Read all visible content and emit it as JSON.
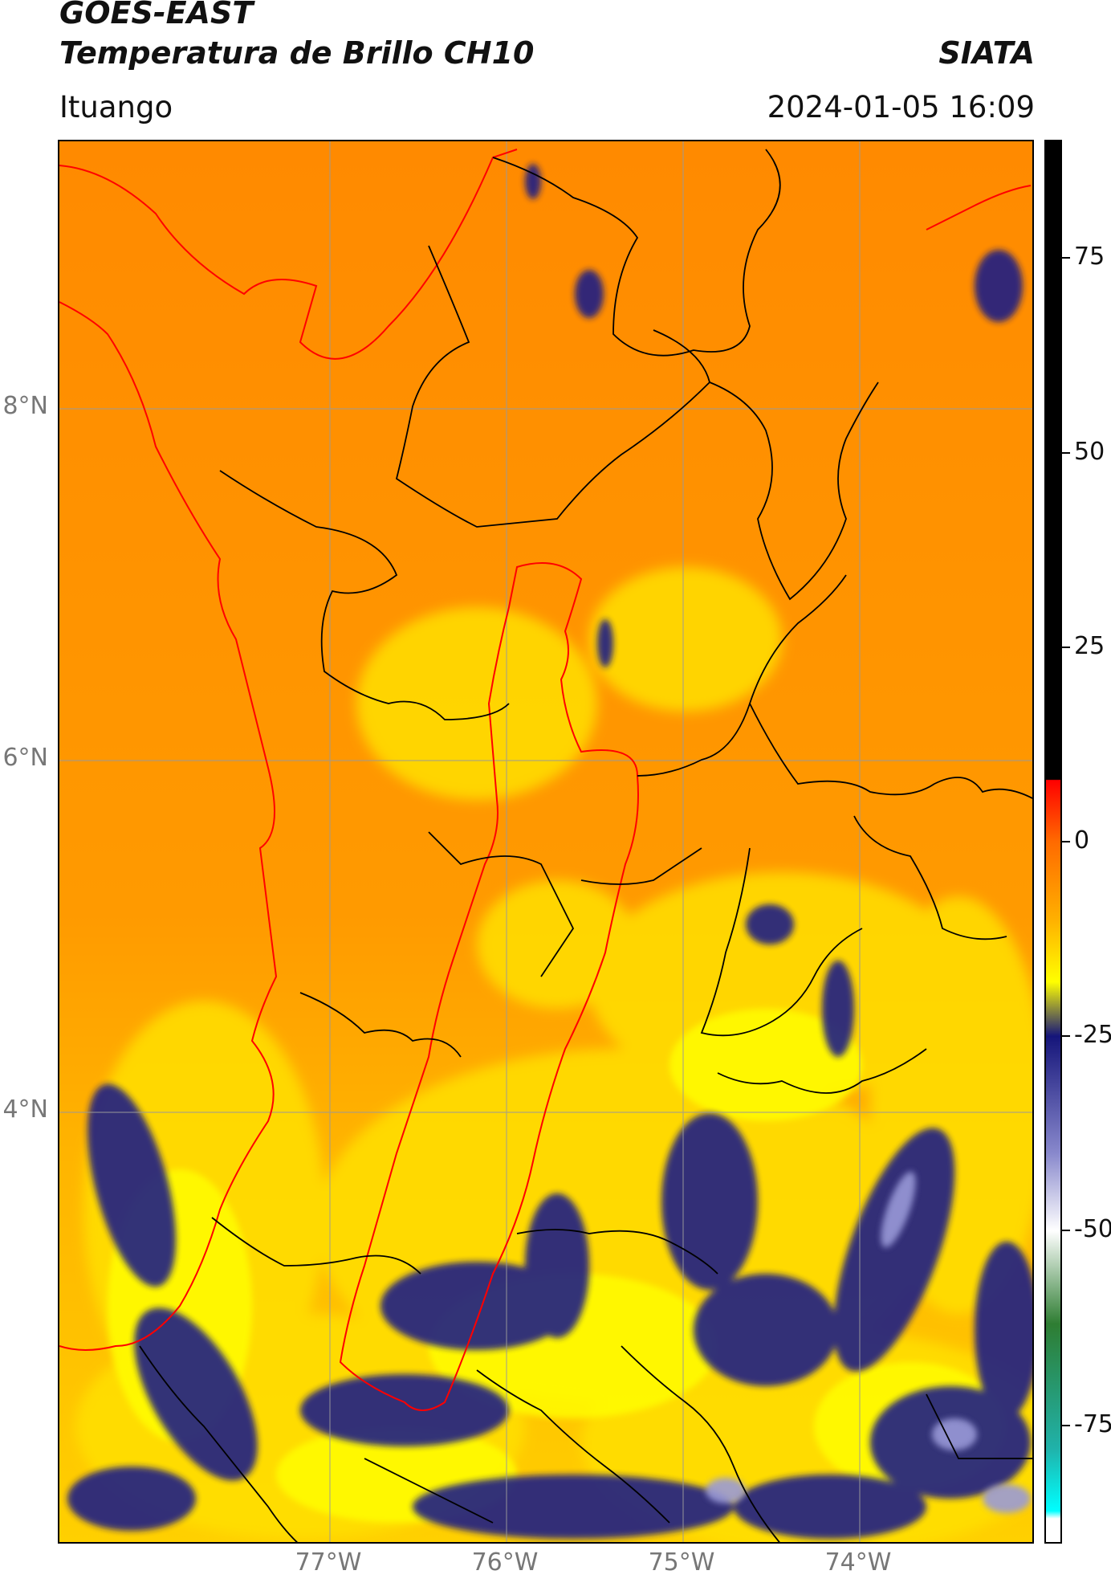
{
  "header": {
    "title_line1": "GOES-EAST",
    "title_line2": "Temperatura de Brillo CH10",
    "brand": "SIATA",
    "location": "Ituango",
    "timestamp": "2024-01-05 16:09"
  },
  "map": {
    "lat_labels": [
      "8°N",
      "6°N",
      "4°N"
    ],
    "lon_labels": [
      "77°W",
      "76°W",
      "75°W",
      "74°W"
    ],
    "colors": {
      "warm": "#ff8c00",
      "mild": "#ffb000",
      "cool": "#ffff00",
      "cold": "#20208a",
      "coast": "#ff0000",
      "border": "#000000",
      "grid": "#9a9a9a"
    }
  },
  "colorbar": {
    "tick_labels": [
      "75",
      "50",
      "25",
      "0",
      "-25",
      "-50",
      "-75"
    ],
    "tick_values": [
      75,
      50,
      25,
      0,
      -25,
      -50,
      -75
    ],
    "range": [
      -90,
      90
    ],
    "stops": [
      {
        "value": 90,
        "color": "#000000"
      },
      {
        "value": 8,
        "color": "#000000"
      },
      {
        "value": 7.9,
        "color": "#ff0000"
      },
      {
        "value": 0,
        "color": "#ff6a00"
      },
      {
        "value": -10,
        "color": "#ffb000"
      },
      {
        "value": -18,
        "color": "#ffff00"
      },
      {
        "value": -25,
        "color": "#15157a"
      },
      {
        "value": -40,
        "color": "#8888cc"
      },
      {
        "value": -50,
        "color": "#ffffff"
      },
      {
        "value": -62,
        "color": "#2e7d32"
      },
      {
        "value": -78,
        "color": "#20b2aa"
      },
      {
        "value": -86,
        "color": "#00ffff"
      },
      {
        "value": -87,
        "color": "#ffffff"
      }
    ]
  }
}
